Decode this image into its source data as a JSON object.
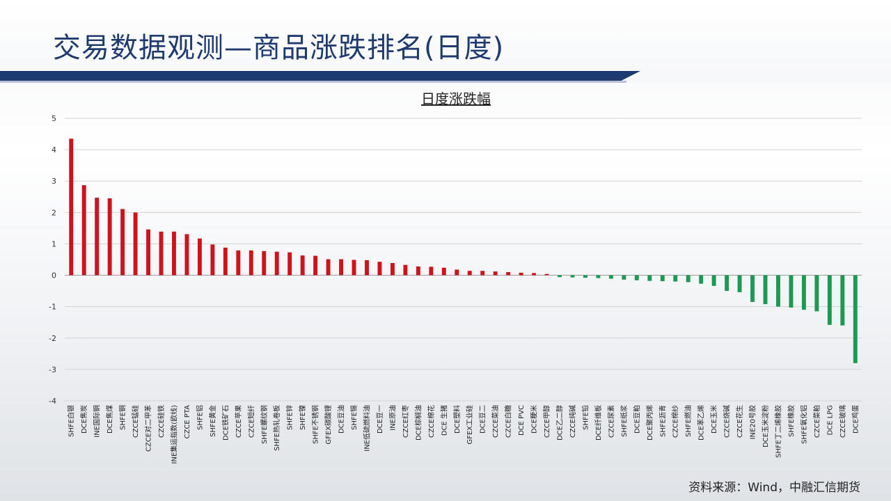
{
  "page": {
    "title": "交易数据观测—商品涨跌排名(日度)",
    "source": "资料来源：Wind，中融汇信期货"
  },
  "colors": {
    "title": "#1f3a6e",
    "positive": "#d0121b",
    "negative": "#1a9a52"
  },
  "chart_data": {
    "type": "bar",
    "title": "日度涨跌幅",
    "xlabel": "",
    "ylabel": "",
    "ylim": [
      -4,
      5
    ],
    "yticks": [
      5,
      4,
      3,
      2,
      1,
      0,
      -1,
      -2,
      -3,
      -4
    ],
    "grid": true,
    "categories": [
      "SHFE白银",
      "DCE焦炭",
      "INE国际铜",
      "DCE焦煤",
      "SHFE铜",
      "CZCE锰硅",
      "CZCE对二甲苯",
      "CZCE硅铁",
      "INE集运指数(欧线)",
      "CZCE PTA",
      "SHFE铝",
      "SHFE黄金",
      "DCE铁矿石",
      "CZCE苹果",
      "CZCE短纤",
      "SHFE螺纹钢",
      "SHFE热轧卷板",
      "SHFE锌",
      "SHFE镍",
      "SHFE不锈钢",
      "GFEX碳酸锂",
      "DCE豆油",
      "SHFE锡",
      "INE低硫燃料油",
      "DCE豆一",
      "INE原油",
      "CZCE红枣",
      "DCE棕榈油",
      "CZCE棉花",
      "DCE 生猪",
      "DCE塑料",
      "GFEX工业硅",
      "DCE豆二",
      "CZCE菜油",
      "CZCE白糖",
      "DCE PVC",
      "DCE粳米",
      "CZCE甲醇",
      "DCE乙二醇",
      "CZCE纯碱",
      "SHFE铅",
      "DCE纤维板",
      "CZCE尿素",
      "SHFE纸浆",
      "DCE豆粕",
      "DCE聚丙烯",
      "SHFE沥青",
      "CZCE棉纱",
      "SHFE燃油",
      "DCE苯乙烯",
      "DCE玉米",
      "CZCE烧碱",
      "CZCE花生",
      "INE20号胶",
      "DCE玉米淀粉",
      "SHFE丁二烯橡胶",
      "SHFE橡胶",
      "SHFE氧化铝",
      "CZCE菜粕",
      "DCE LPG",
      "CZCE玻璃",
      "DCE鸡蛋"
    ],
    "values": [
      4.35,
      2.87,
      2.47,
      2.45,
      2.11,
      2.0,
      1.46,
      1.39,
      1.39,
      1.31,
      1.17,
      0.98,
      0.88,
      0.79,
      0.79,
      0.77,
      0.75,
      0.73,
      0.63,
      0.62,
      0.51,
      0.51,
      0.49,
      0.48,
      0.43,
      0.39,
      0.33,
      0.28,
      0.27,
      0.24,
      0.18,
      0.14,
      0.14,
      0.12,
      0.1,
      0.08,
      0.07,
      0.04,
      -0.06,
      -0.07,
      -0.08,
      -0.09,
      -0.11,
      -0.14,
      -0.16,
      -0.18,
      -0.19,
      -0.2,
      -0.22,
      -0.27,
      -0.34,
      -0.5,
      -0.54,
      -0.85,
      -0.92,
      -1.0,
      -1.03,
      -1.1,
      -1.15,
      -1.58,
      -1.6,
      -2.8
    ]
  }
}
